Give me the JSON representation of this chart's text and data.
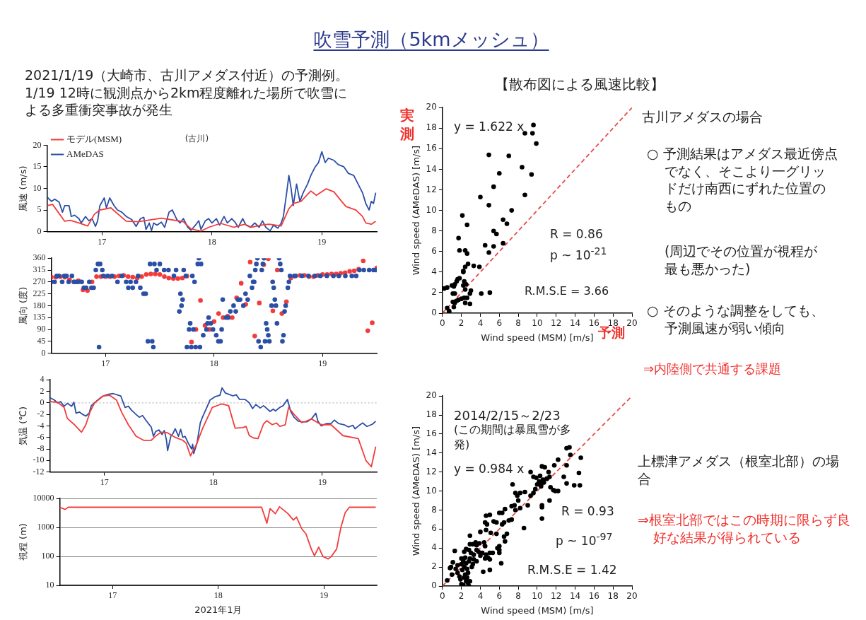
{
  "chart_data": [
    {
      "type": "other",
      "title": "吹雪予測（5kmメッシュ）",
      "annotations": [
        "2021/1/19（大崎市、古川アメダス付近）の予測例。1/19 12時に観測点から2km程度離れた場所で吹雪による多重衝突事故が発生"
      ]
    },
    {
      "type": "line",
      "title": "(古川)",
      "ylabel": "風速 (m/s)",
      "xlim": [
        16.5,
        19.5
      ],
      "xticks": [
        17,
        18,
        19
      ],
      "ylim": [
        0,
        20
      ],
      "yticks": [
        0,
        5,
        10,
        15,
        20
      ],
      "legend": "top left",
      "series": [
        {
          "name": "モデル(MSM)",
          "color": "#f23c3c",
          "x": [
            16.5,
            16.55,
            16.66,
            16.71,
            16.79,
            16.87,
            16.93,
            16.98,
            17.08,
            17.22,
            17.33,
            17.54,
            17.74,
            17.81,
            17.9,
            17.97,
            18.08,
            18.2,
            18.3,
            18.36,
            18.47,
            18.52,
            18.63,
            18.7,
            18.74,
            18.81,
            18.9,
            18.95,
            19.04,
            19.11,
            19.18,
            19.22,
            19.31,
            19.37,
            19.4,
            19.45,
            19.49
          ],
          "values": [
            6.0,
            6.3,
            2.4,
            2.6,
            2.0,
            1.3,
            4.0,
            5.0,
            5.5,
            2.4,
            2.3,
            3.1,
            2.3,
            0.6,
            0.1,
            1.0,
            1.9,
            1.0,
            1.7,
            1.0,
            1.6,
            1.7,
            1.3,
            5.3,
            6.5,
            7.0,
            9.4,
            8.4,
            9.9,
            9.2,
            7.0,
            5.8,
            5.0,
            3.5,
            2.0,
            1.7,
            2.4
          ]
        },
        {
          "name": "AMeDAS",
          "color": "#2b4fa5",
          "x": [
            16.5,
            16.54,
            16.57,
            16.61,
            16.64,
            16.66,
            16.7,
            16.72,
            16.75,
            16.79,
            16.81,
            16.85,
            16.88,
            16.91,
            16.94,
            16.96,
            16.98,
            17.02,
            17.04,
            17.07,
            17.11,
            17.14,
            17.18,
            17.22,
            17.27,
            17.31,
            17.35,
            17.38,
            17.4,
            17.43,
            17.45,
            17.47,
            17.5,
            17.54,
            17.57,
            17.61,
            17.64,
            17.68,
            17.71,
            17.74,
            17.78,
            17.81,
            17.85,
            17.88,
            17.9,
            17.94,
            17.97,
            18.0,
            18.04,
            18.07,
            18.11,
            18.14,
            18.18,
            18.21,
            18.24,
            18.28,
            18.31,
            18.35,
            18.39,
            18.43,
            18.46,
            18.49,
            18.53,
            18.56,
            18.6,
            18.63,
            18.65,
            18.68,
            18.7,
            18.72,
            18.74,
            18.77,
            18.8,
            18.83,
            18.87,
            18.9,
            18.94,
            18.97,
            19.0,
            19.03,
            19.06,
            19.11,
            19.15,
            19.2,
            19.24,
            19.29,
            19.33,
            19.37,
            19.4,
            19.43,
            19.45,
            19.47,
            19.49
          ],
          "values": [
            8.0,
            7.0,
            7.5,
            6.8,
            4.5,
            6.0,
            6.0,
            3.5,
            3.8,
            3.0,
            2.0,
            3.5,
            2.5,
            3.0,
            1.2,
            2.5,
            6.0,
            7.8,
            5.5,
            7.8,
            6.0,
            5.0,
            4.5,
            3.5,
            2.8,
            1.2,
            3.0,
            3.3,
            0.5,
            2.0,
            0.2,
            2.0,
            1.5,
            2.2,
            1.0,
            4.5,
            5.0,
            2.8,
            2.0,
            3.0,
            1.0,
            0.3,
            1.5,
            2.5,
            0.5,
            2.5,
            3.0,
            2.0,
            3.0,
            1.5,
            3.5,
            2.0,
            3.0,
            2.2,
            1.0,
            3.0,
            1.5,
            1.0,
            2.0,
            1.0,
            2.5,
            1.0,
            0.2,
            1.5,
            0.8,
            2.0,
            3.5,
            9.0,
            13.0,
            10.0,
            6.0,
            11.0,
            7.0,
            9.0,
            11.0,
            13.0,
            15.0,
            16.0,
            18.5,
            16.0,
            17.0,
            16.5,
            15.5,
            15.0,
            13.5,
            13.0,
            11.0,
            9.0,
            6.5,
            5.0,
            7.0,
            6.5,
            9.0
          ]
        }
      ]
    },
    {
      "type": "scatter",
      "ylabel": "風向 (度)",
      "xlim": [
        16.5,
        19.5
      ],
      "xticks": [
        17,
        18,
        19
      ],
      "ylim": [
        0,
        360
      ],
      "yticks": [
        0,
        45,
        90,
        135,
        180,
        225,
        270,
        315,
        360
      ],
      "marker": "circle",
      "series": [
        {
          "color": "#2b4fa5",
          "x": [
            16.5,
            16.53,
            16.55,
            16.57,
            16.6,
            16.62,
            16.64,
            16.66,
            16.69,
            16.71,
            16.73,
            16.75,
            16.78,
            16.8,
            16.82,
            16.85,
            16.87,
            16.89,
            16.91,
            16.93,
            16.94,
            16.95,
            16.97,
            16.98,
            17.02,
            17.06,
            17.11,
            17.15,
            17.19,
            17.21,
            17.23,
            17.25,
            17.28,
            17.3,
            17.32,
            17.35,
            17.37,
            17.39,
            17.41,
            17.43,
            17.44,
            17.45,
            17.47,
            17.5,
            17.54,
            17.58,
            17.63,
            17.65,
            17.68,
            17.69,
            17.7,
            17.71,
            17.72,
            17.74,
            17.75,
            17.77,
            17.78,
            17.79,
            17.8,
            17.81,
            17.82,
            17.83,
            17.85,
            17.86,
            17.87,
            17.88,
            17.9,
            17.93,
            17.94,
            17.95,
            17.97,
            17.99,
            18.02,
            18.04,
            18.06,
            18.07,
            18.08,
            18.11,
            18.13,
            18.15,
            18.18,
            18.2,
            18.22,
            18.24,
            18.27,
            18.29,
            18.31,
            18.33,
            18.35,
            18.36,
            18.37,
            18.38,
            18.39,
            18.4,
            18.41,
            18.43,
            18.44,
            18.45,
            18.46,
            18.47,
            18.48,
            18.49,
            18.5,
            18.51,
            18.53,
            18.54,
            18.55,
            18.56,
            18.57,
            18.58,
            18.6,
            18.61,
            18.62,
            18.63,
            18.64,
            18.65,
            18.66,
            18.68,
            18.69,
            18.7,
            18.74,
            18.75,
            18.81,
            18.87,
            18.93,
            18.98,
            19.04,
            19.1,
            19.15,
            19.21,
            19.27,
            19.31,
            19.34,
            19.38,
            19.43,
            19.47,
            19.49
          ],
          "values": [
            270,
            270,
            293,
            293,
            270,
            293,
            293,
            270,
            293,
            270,
            270,
            270,
            270,
            248,
            248,
            270,
            248,
            248,
            315,
            338,
            23,
            338,
            315,
            293,
            293,
            293,
            270,
            293,
            270,
            248,
            270,
            248,
            270,
            293,
            248,
            225,
            225,
            45,
            338,
            45,
            23,
            338,
            315,
            338,
            315,
            315,
            293,
            315,
            158,
            225,
            180,
            203,
            315,
            293,
            23,
            90,
            113,
            23,
            293,
            90,
            270,
            23,
            338,
            360,
            23,
            338,
            68,
            90,
            113,
            135,
            113,
            90,
            68,
            45,
            45,
            90,
            203,
            135,
            135,
            158,
            180,
            158,
            203,
            203,
            180,
            225,
            203,
            293,
            248,
            270,
            270,
            315,
            338,
            360,
            45,
            23,
            315,
            338,
            360,
            45,
            113,
            90,
            68,
            45,
            180,
            270,
            248,
            203,
            180,
            113,
            360,
            338,
            315,
            45,
            68,
            158,
            180,
            248,
            270,
            293,
            293,
            293,
            293,
            293,
            293,
            293,
            293,
            293,
            293,
            293,
            293,
            293,
            315,
            315,
            315,
            315,
            315
          ]
        },
        {
          "color": "#f23c3c",
          "x": [
            16.5,
            16.542,
            16.583,
            16.625,
            16.667,
            16.708,
            16.75,
            16.792,
            16.833,
            16.875,
            16.917,
            16.958,
            17,
            17.042,
            17.083,
            17.125,
            17.167,
            17.208,
            17.25,
            17.292,
            17.333,
            17.375,
            17.417,
            17.458,
            17.5,
            17.542,
            17.583,
            17.625,
            17.667,
            17.708,
            17.75,
            17.792,
            17.833,
            17.875,
            17.917,
            17.958,
            18,
            18.042,
            18.083,
            18.125,
            18.167,
            18.208,
            18.25,
            18.292,
            18.333,
            18.375,
            18.417,
            18.458,
            18.5,
            18.542,
            18.583,
            18.625,
            18.667,
            18.708,
            18.75,
            18.792,
            18.833,
            18.875,
            18.917,
            18.958,
            19,
            19.042,
            19.083,
            19.125,
            19.167,
            19.208,
            19.25,
            19.292,
            19.333,
            19.375,
            19.417,
            19.458,
            19.5
          ],
          "values": [
            288,
            288,
            290,
            288,
            278,
            270,
            275,
            240,
            237,
            270,
            290,
            290,
            290,
            290,
            290,
            293,
            295,
            290,
            288,
            285,
            290,
            298,
            300,
            300,
            298,
            290,
            285,
            283,
            283,
            285,
            292,
            42,
            90,
            200,
            105,
            90,
            120,
            150,
            135,
            140,
            135,
            210,
            265,
            185,
            345,
            65,
            190,
            335,
            358,
            160,
            315,
            150,
            195,
            285,
            293,
            295,
            295,
            290,
            290,
            295,
            298,
            298,
            300,
            300,
            303,
            305,
            310,
            312,
            318,
            350,
            85,
            115,
            323
          ]
        }
      ]
    },
    {
      "type": "line",
      "ylabel": "気温 (℃)",
      "xlim": [
        16.5,
        19.5
      ],
      "xticks": [
        17,
        18,
        19
      ],
      "ylim": [
        -12,
        4
      ],
      "yticks": [
        -12,
        -10,
        -8,
        -6,
        -4,
        -2,
        0,
        2,
        4
      ],
      "ref_lines": [
        {
          "axis": "y",
          "value": 0,
          "color": "#b8b8b8",
          "line_style": "dotted"
        }
      ],
      "series": [
        {
          "color": "#f23c3c",
          "x": [
            16.5,
            16.57,
            16.63,
            16.66,
            16.72,
            16.79,
            16.83,
            16.87,
            16.91,
            16.99,
            17.05,
            17.11,
            17.16,
            17.22,
            17.29,
            17.36,
            17.43,
            17.47,
            17.52,
            17.58,
            17.65,
            17.72,
            17.75,
            17.79,
            17.85,
            17.9,
            17.99,
            18.06,
            18.08,
            18.14,
            18.2,
            18.27,
            18.3,
            18.33,
            18.37,
            18.41,
            18.46,
            18.49,
            18.54,
            18.58,
            18.61,
            18.66,
            18.69,
            18.75,
            18.81,
            18.84,
            18.9,
            18.99,
            19.08,
            19.19,
            19.33,
            19.4,
            19.45,
            19.49
          ],
          "values": [
            0.2,
            0.1,
            -0.8,
            -2.7,
            -3.7,
            -5.1,
            -3.8,
            -1.5,
            0,
            1.2,
            1.3,
            0.5,
            -1.7,
            -3.8,
            -5.8,
            -6.5,
            -6.5,
            -5.8,
            -5.1,
            -5.2,
            -6.0,
            -6.5,
            -7.0,
            -9.2,
            -7.0,
            -4.5,
            -0.8,
            -0.3,
            -0.2,
            -0.5,
            -4.4,
            -4.3,
            -4.1,
            -5.7,
            -6.1,
            -6.2,
            -3.7,
            -3.1,
            -3.8,
            -3.5,
            -4.1,
            -3.8,
            -0.8,
            -2.2,
            -3.4,
            -3.3,
            -2.8,
            -3.8,
            -3.8,
            -5.7,
            -6.2,
            -10.0,
            -11.1,
            -7.6
          ]
        },
        {
          "color": "#2b4fa5",
          "x": [
            16.5,
            16.54,
            16.57,
            16.6,
            16.63,
            16.66,
            16.7,
            16.72,
            16.74,
            16.77,
            16.8,
            16.83,
            16.86,
            16.88,
            16.91,
            16.96,
            16.99,
            17.04,
            17.08,
            17.13,
            17.15,
            17.19,
            17.22,
            17.25,
            17.29,
            17.32,
            17.35,
            17.38,
            17.4,
            17.43,
            17.45,
            17.47,
            17.5,
            17.53,
            17.55,
            17.57,
            17.58,
            17.61,
            17.63,
            17.65,
            17.68,
            17.7,
            17.72,
            17.74,
            17.77,
            17.8,
            17.81,
            17.82,
            17.85,
            17.88,
            17.9,
            17.94,
            17.97,
            18.02,
            18.06,
            18.08,
            18.11,
            18.14,
            18.18,
            18.21,
            18.24,
            18.29,
            18.33,
            18.36,
            18.39,
            18.43,
            18.46,
            18.48,
            18.52,
            18.55,
            18.57,
            18.61,
            18.64,
            18.68,
            18.71,
            18.74,
            18.78,
            18.81,
            18.86,
            18.9,
            18.94,
            18.96,
            18.99,
            19.04,
            19.08,
            19.11,
            19.15,
            19.2,
            19.24,
            19.28,
            19.3,
            19.34,
            19.37,
            19.41,
            19.46,
            19.49
          ],
          "values": [
            0.9,
            0.5,
            0,
            0.2,
            -0.6,
            -0.1,
            -0.6,
            0.1,
            -1.8,
            -1.6,
            -2.0,
            -2.3,
            -1.8,
            -0.5,
            0,
            0.8,
            1.2,
            1.5,
            1.6,
            1.3,
            1.2,
            -0.8,
            -0.6,
            -1.3,
            -2.0,
            -2.5,
            -2.2,
            -3.0,
            -3.5,
            -4.2,
            -5.8,
            -5.0,
            -4.7,
            -5.5,
            -4.8,
            -6.5,
            -8.3,
            -5.8,
            -5.3,
            -4.5,
            -5.8,
            -4.6,
            -6.0,
            -5.8,
            -7.0,
            -8.0,
            -7.2,
            -8.8,
            -7.0,
            -3.5,
            -2.5,
            -0.8,
            0.5,
            1.1,
            1.3,
            2.6,
            1.7,
            1.5,
            1.2,
            1.4,
            0.6,
            0.6,
            0,
            -1.0,
            -0.3,
            -0.9,
            -0.5,
            -0.8,
            -1.5,
            -1.1,
            -1.4,
            -0.8,
            -0.5,
            0.6,
            -1.5,
            -2.5,
            -3.2,
            -3.3,
            -3.3,
            -2.8,
            -1.8,
            -3.2,
            -4.0,
            -3.6,
            -3.6,
            -3.0,
            -3.6,
            -3.8,
            -4.2,
            -3.9,
            -4.5,
            -3.9,
            -3.5,
            -4.1,
            -3.7,
            -3.2
          ]
        }
      ]
    },
    {
      "type": "line",
      "ylabel": "視程 (m)",
      "xlabel": "2021年1月",
      "xlim": [
        16.5,
        19.5
      ],
      "xticks": [
        17,
        18,
        19
      ],
      "ylim": [
        10,
        10000
      ],
      "yticks": [
        10,
        100,
        1000,
        10000
      ],
      "log": "y",
      "grid": "y",
      "series": [
        {
          "color": "#f23c3c",
          "x": [
            16.5,
            16.55,
            16.58,
            18.41,
            18.46,
            18.49,
            18.54,
            18.58,
            18.66,
            18.71,
            18.74,
            18.79,
            18.83,
            18.88,
            18.91,
            18.95,
            18.99,
            19.04,
            19.07,
            19.12,
            19.16,
            19.2,
            19.24,
            19.49
          ],
          "values": [
            5000,
            4200,
            5000,
            5000,
            1400,
            4500,
            3000,
            5200,
            3000,
            1800,
            2300,
            900,
            600,
            180,
            105,
            210,
            100,
            82,
            100,
            180,
            1000,
            3200,
            5000,
            5000
          ]
        }
      ]
    },
    {
      "type": "scatter",
      "title": "【散布図による風速比較】",
      "xlabel": "Wind speed (MSM) [m/s]",
      "ylabel": "Wind speed (AMeDAS) [m/s]",
      "xlim": [
        0,
        20
      ],
      "xticks": [
        0,
        2,
        4,
        6,
        8,
        10,
        12,
        14,
        16,
        18,
        20
      ],
      "ylim": [
        0,
        20
      ],
      "yticks": [
        0,
        2,
        4,
        6,
        8,
        10,
        12,
        14,
        16,
        18,
        20
      ],
      "marker": "circle",
      "annotations": [
        "y = 1.622 x",
        "R = 0.86",
        "p ~ 10$^{-21}$",
        "R.M.S.E = 3.66",
        "実測",
        "予測",
        "古川アメダスの場合",
        "○ 予測結果はアメダス最近傍点でなく、そこより一グリッドだけ南西にずれた位置のもの",
        "(周辺でその位置が視程が最も悪かった)",
        "○ そのような調整をしても、予測風速が弱い傾向",
        "⇒内陸側で共通する課題"
      ],
      "series": [
        {
          "color": "#000000",
          "x": [
            9.6,
            8.7,
            9.5,
            9.9,
            4.9,
            7.0,
            8.4,
            6.0,
            9.4,
            5.4,
            4.0,
            8.7,
            4.9,
            7.3,
            2.1,
            6.4,
            6.8,
            2.6,
            5.4,
            5.7,
            1.7,
            4.5,
            5.4,
            6.4,
            1.8,
            2.4,
            4.9,
            2.6,
            2.7,
            3.3,
            3.9,
            2.4,
            2.2,
            2.2,
            1.8,
            1.6,
            1.5,
            2.3,
            2.5,
            2.2,
            1.3,
            1.0,
            1.2,
            0.5,
            0.2,
            0,
            2.4,
            3.0,
            2.9,
            4.1,
            5.0,
            1.1,
            1.3,
            2.6,
            2.3,
            2.0,
            1.7,
            1.5,
            1.3,
            1.1,
            1.2,
            2.4,
            2.9,
            0.5,
            0.7,
            0.7
          ],
          "values": [
            18.3,
            17.5,
            17.5,
            16.5,
            15.4,
            15.3,
            14.2,
            13.6,
            13.5,
            12.3,
            11.3,
            11.5,
            10.5,
            10.0,
            9.5,
            9.1,
            8.7,
            8.6,
            8.0,
            7.7,
            7.3,
            6.6,
            6.5,
            6.8,
            6.1,
            6.1,
            5.9,
            5.8,
            4.8,
            4.6,
            4.5,
            4.5,
            4.1,
            4.0,
            3.4,
            3.3,
            3.1,
            3.1,
            2.8,
            2.7,
            2.8,
            2.7,
            2.6,
            2.5,
            2.4,
            2.4,
            2.3,
            2.2,
            1.9,
            1.9,
            2.0,
            1.9,
            1.9,
            1.5,
            1.5,
            1.4,
            1.3,
            1.2,
            1.0,
            1.1,
            0.6,
            1.0,
            0.9,
            0.5,
            0.2,
            0.1
          ]
        },
        {
          "type": "line",
          "color": "#e84a4a",
          "line_style": "dashed",
          "marker": "none",
          "x": [
            0,
            20
          ],
          "values": [
            0,
            20
          ]
        }
      ]
    },
    {
      "type": "scatter",
      "xlabel": "Wind speed (MSM) [m/s]",
      "ylabel": "Wind speed (AMeDAS) [m/s]",
      "xlim": [
        0,
        20
      ],
      "xticks": [
        0,
        2,
        4,
        6,
        8,
        10,
        12,
        14,
        16,
        18,
        20
      ],
      "ylim": [
        0,
        20
      ],
      "yticks": [
        0,
        2,
        4,
        6,
        8,
        10,
        12,
        14,
        16,
        18,
        20
      ],
      "marker": "circle",
      "annotations": [
        "2014/2/15～2/23",
        "(この期間は暴風雪が多発)",
        "y = 0.984 x",
        "R = 0.93",
        "p ~ 10$^{-97}$",
        "R.M.S.E = 1.42",
        "上標津アメダス（根室北部）の場合",
        "⇒根室北部ではこの時期に限らず良好な結果が得られている"
      ],
      "series": [
        {
          "color": "#000000",
          "x": [
            13.1,
            13.4,
            13.5,
            14.6,
            12.2,
            11.8,
            13.1,
            10.5,
            10.8,
            11.2,
            14.4,
            12.8,
            13.1,
            13.9,
            14.5,
            9.3,
            9.6,
            9.9,
            10.3,
            10.6,
            11.0,
            10.4,
            10.7,
            11.3,
            10.2,
            10.0,
            10.4,
            11.4,
            11.7,
            12.2,
            11.9,
            11.3,
            10.5,
            10.5,
            10.5,
            9.6,
            9.3,
            9.8,
            8.2,
            8.7,
            7.7,
            7.9,
            7.4,
            8.0,
            9.0,
            8.6,
            7.6,
            7.7,
            7.3,
            7.3,
            8.2,
            7.0,
            6.6,
            6.3,
            6.0,
            6.5,
            6.3,
            5.7,
            5.4,
            5.0,
            4.6,
            4.5,
            4.7,
            5.7,
            5.1,
            4.6,
            6.8,
            6.5,
            6.0,
            6.0,
            6.0,
            6.6,
            5.8,
            4.0,
            4.4,
            3.5,
            3.6,
            3.2,
            3.9,
            4.5,
            4.2,
            3.8,
            3.6,
            4.6,
            5.0,
            5.3,
            4.8,
            4.5,
            5.0,
            4.3,
            5.0,
            6.2,
            4.0,
            3.3,
            3.0,
            2.9,
            2.9,
            2.5,
            2.3,
            2.8,
            1.3,
            1.1,
            0.8,
            0.9,
            0.5,
            1.0,
            1.4,
            1.6,
            1.6,
            1.8,
            1.9,
            2.0,
            2.2,
            2.4,
            2.0,
            2.1,
            2.3,
            2.5,
            2.6,
            2.8,
            2.7,
            2.4,
            2.0,
            2.2,
            2.5,
            2.7,
            2.8,
            2.9,
            2.6,
            2.3,
            3.1,
            3.3,
            3.6,
            2.9,
            3.2
          ],
          "values": [
            14.5,
            14.6,
            13.8,
            13.5,
            13.3,
            12.7,
            12.7,
            12.6,
            12.5,
            12.0,
            11.9,
            11.5,
            10.8,
            10.6,
            10.6,
            12.0,
            11.5,
            11.4,
            11.6,
            11.2,
            11.3,
            10.8,
            10.9,
            11.5,
            11.0,
            10.7,
            10.5,
            10.4,
            10.1,
            10.0,
            10.0,
            9.0,
            8.5,
            8.3,
            7.1,
            9.8,
            9.5,
            10.2,
            9.8,
            9.9,
            9.8,
            9.5,
            10.7,
            9.0,
            8.5,
            6.1,
            8.5,
            8.0,
            8.4,
            7.0,
            8.2,
            6.9,
            8.1,
            7.7,
            7.7,
            6.7,
            6.5,
            6.7,
            6.8,
            7.5,
            7.4,
            6.7,
            6.5,
            5.5,
            5.6,
            5.9,
            5.5,
            5.2,
            4.2,
            3.8,
            3.5,
            4.7,
            4.0,
            5.7,
            4.6,
            4.6,
            4.3,
            4.4,
            4.5,
            4.2,
            3.5,
            3.6,
            3.8,
            3.3,
            3.5,
            3.5,
            3.0,
            2.9,
            2.8,
            1.5,
            1.7,
            2.4,
            3.2,
            3.3,
            3.5,
            4.4,
            5.3,
            3.9,
            3.6,
            3.8,
            3.7,
            2.5,
            1.9,
            2.0,
            0.6,
            1.2,
            1.8,
            2.2,
            1.4,
            1.0,
            0.7,
            2.9,
            2.6,
            3.0,
            2.3,
            1.7,
            2.0,
            2.4,
            1.8,
            2.6,
            1.4,
            1.2,
            0.2,
            0.1,
            0.5,
            0.3,
            0.0,
            0.5,
            0.9,
            0.9,
            2.0,
            2.8,
            2.6,
            2.9,
            2.3
          ]
        },
        {
          "type": "line",
          "color": "#e84a4a",
          "line_style": "dashed",
          "marker": "none",
          "x": [
            0,
            20
          ],
          "values": [
            0,
            20
          ]
        }
      ]
    }
  ]
}
